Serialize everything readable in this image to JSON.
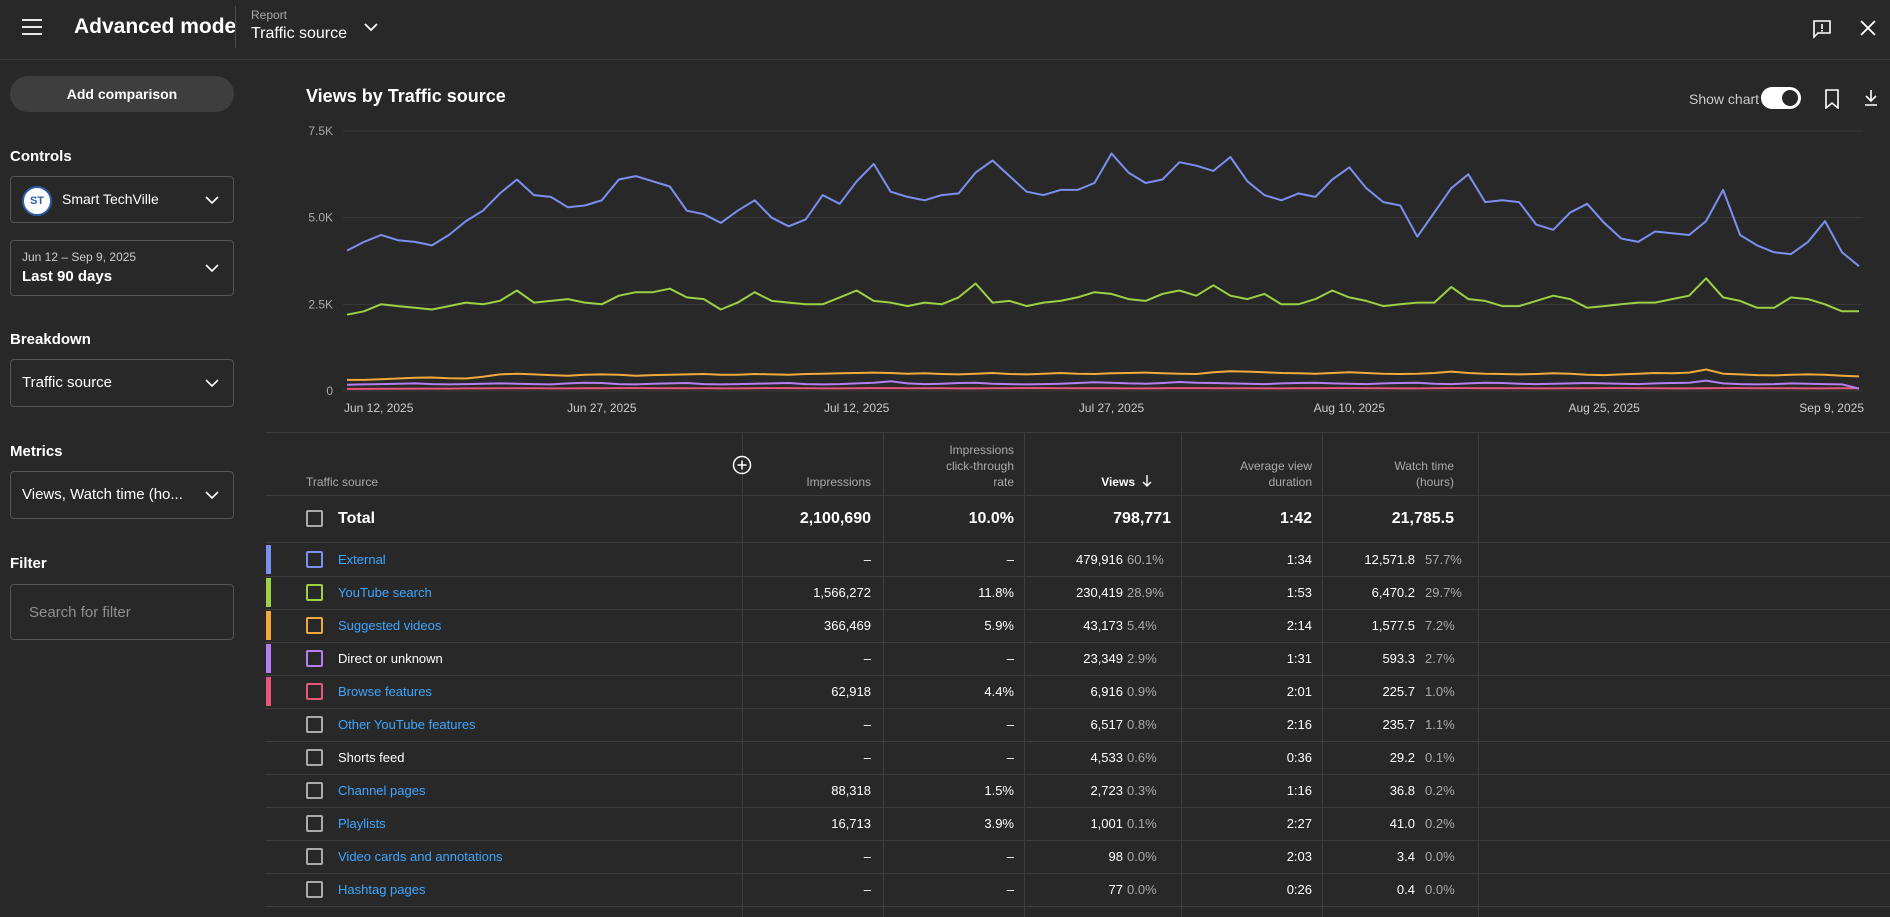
{
  "header": {
    "app_title": "Advanced mode",
    "report_caption": "Report",
    "report_name": "Traffic source"
  },
  "sidebar": {
    "add_comparison": "Add comparison",
    "controls_label": "Controls",
    "channel_name": "Smart TechVille",
    "channel_initials": "ST",
    "date_range": "Jun 12 – Sep 9, 2025",
    "date_preset": "Last 90 days",
    "breakdown_label": "Breakdown",
    "breakdown_value": "Traffic source",
    "metrics_label": "Metrics",
    "metrics_value": "Views, Watch time (ho...",
    "filter_label": "Filter",
    "filter_placeholder": "Search for filter"
  },
  "main": {
    "chart_title": "Views by Traffic source",
    "show_chart_label": "Show chart",
    "show_chart_on": true
  },
  "chart_data": {
    "type": "line",
    "title": "Views by Traffic source",
    "y_ticks": [
      "7.5K",
      "5.0K",
      "2.5K",
      "0"
    ],
    "ylim": [
      0,
      7500
    ],
    "x_ticks": [
      {
        "label": "Jun 12, 2025",
        "i": 0
      },
      {
        "label": "Jun 27, 2025",
        "i": 15
      },
      {
        "label": "Jul 12, 2025",
        "i": 30
      },
      {
        "label": "Jul 27, 2025",
        "i": 45
      },
      {
        "label": "Aug 10, 2025",
        "i": 59
      },
      {
        "label": "Aug 25, 2025",
        "i": 74
      },
      {
        "label": "Sep 9, 2025",
        "i": 89
      }
    ],
    "grid": true,
    "series": [
      {
        "name": "External",
        "color": "#7b8ff0",
        "values": [
          4050,
          4300,
          4500,
          4350,
          4300,
          4200,
          4500,
          4900,
          5200,
          5700,
          6100,
          5650,
          5600,
          5300,
          5350,
          5500,
          6100,
          6200,
          6050,
          5900,
          5200,
          5100,
          4850,
          5200,
          5500,
          5000,
          4750,
          4950,
          5650,
          5400,
          6050,
          6550,
          5750,
          5600,
          5500,
          5650,
          5700,
          6300,
          6650,
          6200,
          5750,
          5650,
          5800,
          5800,
          6000,
          6850,
          6300,
          6000,
          6100,
          6600,
          6500,
          6350,
          6750,
          6050,
          5650,
          5500,
          5700,
          5600,
          6100,
          6450,
          5850,
          5450,
          5350,
          4450,
          5150,
          5850,
          6250,
          5450,
          5500,
          5450,
          4800,
          4650,
          5150,
          5400,
          4850,
          4400,
          4300,
          4600,
          4550,
          4500,
          4900,
          5800,
          4500,
          4200,
          4000,
          3950,
          4300,
          4900,
          4000,
          3600
        ]
      },
      {
        "name": "YouTube search",
        "color": "#9ed043",
        "values": [
          2200,
          2300,
          2500,
          2450,
          2400,
          2350,
          2450,
          2550,
          2500,
          2600,
          2900,
          2550,
          2600,
          2650,
          2550,
          2500,
          2750,
          2850,
          2850,
          2950,
          2700,
          2650,
          2350,
          2550,
          2850,
          2600,
          2550,
          2500,
          2500,
          2700,
          2900,
          2600,
          2550,
          2450,
          2550,
          2500,
          2700,
          3100,
          2550,
          2600,
          2450,
          2550,
          2600,
          2700,
          2850,
          2800,
          2650,
          2600,
          2800,
          2900,
          2750,
          3050,
          2750,
          2650,
          2800,
          2500,
          2500,
          2650,
          2900,
          2700,
          2600,
          2450,
          2500,
          2550,
          2550,
          3000,
          2650,
          2600,
          2450,
          2450,
          2600,
          2750,
          2650,
          2400,
          2450,
          2500,
          2550,
          2550,
          2650,
          2750,
          3250,
          2700,
          2600,
          2400,
          2400,
          2700,
          2650,
          2500,
          2300,
          2300
        ]
      },
      {
        "name": "Suggested videos",
        "color": "#f2a93b",
        "values": [
          320,
          320,
          340,
          360,
          380,
          390,
          370,
          360,
          410,
          480,
          500,
          480,
          460,
          440,
          470,
          480,
          470,
          440,
          460,
          470,
          480,
          490,
          470,
          470,
          490,
          480,
          470,
          490,
          500,
          510,
          520,
          530,
          520,
          500,
          510,
          490,
          480,
          500,
          520,
          490,
          480,
          500,
          520,
          500,
          490,
          510,
          520,
          530,
          510,
          500,
          490,
          540,
          570,
          560,
          540,
          520,
          510,
          500,
          520,
          540,
          520,
          500,
          490,
          500,
          520,
          560,
          520,
          500,
          490,
          480,
          490,
          510,
          500,
          470,
          460,
          480,
          500,
          520,
          510,
          530,
          620,
          500,
          480,
          460,
          450,
          470,
          480,
          470,
          440,
          420
        ]
      },
      {
        "name": "Direct or unknown",
        "color": "#b67ef2",
        "values": [
          180,
          190,
          200,
          210,
          220,
          200,
          190,
          200,
          210,
          220,
          210,
          200,
          190,
          220,
          240,
          230,
          200,
          190,
          210,
          220,
          230,
          200,
          190,
          200,
          210,
          220,
          230,
          200,
          190,
          200,
          220,
          240,
          280,
          220,
          200,
          210,
          230,
          240,
          210,
          200,
          190,
          200,
          210,
          230,
          250,
          240,
          220,
          210,
          230,
          260,
          240,
          230,
          220,
          210,
          200,
          220,
          230,
          240,
          220,
          210,
          200,
          220,
          230,
          240,
          210,
          200,
          220,
          240,
          230,
          210,
          200,
          210,
          220,
          230,
          220,
          210,
          200,
          220,
          230,
          240,
          300,
          220,
          200,
          190,
          200,
          220,
          210,
          200,
          190,
          70
        ]
      },
      {
        "name": "Browse features",
        "color": "#e8567a",
        "values": [
          60,
          60,
          65,
          65,
          70,
          70,
          70,
          75,
          75,
          80,
          80,
          80,
          75,
          75,
          80,
          80,
          85,
          85,
          80,
          80,
          80,
          80,
          75,
          75,
          80,
          85,
          85,
          80,
          75,
          75,
          80,
          85,
          85,
          80,
          80,
          80,
          75,
          75,
          80,
          80,
          85,
          85,
          80,
          80,
          80,
          80,
          75,
          75,
          80,
          85,
          85,
          80,
          80,
          80,
          75,
          75,
          80,
          80,
          85,
          85,
          80,
          80,
          75,
          75,
          80,
          85,
          85,
          80,
          80,
          80,
          75,
          75,
          80,
          80,
          85,
          85,
          80,
          80,
          75,
          75,
          80,
          85,
          85,
          80,
          80,
          80,
          75,
          75,
          80,
          80
        ]
      }
    ]
  },
  "table": {
    "headers": {
      "source": "Traffic source",
      "impressions": "Impressions",
      "ctr_line1": "Impressions",
      "ctr_line2": "click-through",
      "ctr_line3": "rate",
      "views": "Views",
      "avd_line1": "Average view",
      "avd_line2": "duration",
      "wt_line1": "Watch time",
      "wt_line2": "(hours)"
    },
    "total": {
      "label": "Total",
      "impressions": "2,100,690",
      "ctr": "10.0%",
      "views": "798,771",
      "avd": "1:42",
      "watch_time": "21,785.5"
    },
    "rows": [
      {
        "name": "External",
        "link": true,
        "color": "#7b8ff0",
        "impressions": "–",
        "ctr": "–",
        "views": "479,916",
        "views_pct": "60.1%",
        "avd": "1:34",
        "watch_time": "12,571.8",
        "wt_pct": "57.7%"
      },
      {
        "name": "YouTube search",
        "link": true,
        "color": "#9ed043",
        "impressions": "1,566,272",
        "ctr": "11.8%",
        "views": "230,419",
        "views_pct": "28.9%",
        "avd": "1:53",
        "watch_time": "6,470.2",
        "wt_pct": "29.7%"
      },
      {
        "name": "Suggested videos",
        "link": true,
        "color": "#f2a93b",
        "impressions": "366,469",
        "ctr": "5.9%",
        "views": "43,173",
        "views_pct": "5.4%",
        "avd": "2:14",
        "watch_time": "1,577.5",
        "wt_pct": "7.2%"
      },
      {
        "name": "Direct or unknown",
        "link": false,
        "color": "#b67ef2",
        "impressions": "–",
        "ctr": "–",
        "views": "23,349",
        "views_pct": "2.9%",
        "avd": "1:31",
        "watch_time": "593.3",
        "wt_pct": "2.7%"
      },
      {
        "name": "Browse features",
        "link": true,
        "color": "#e8567a",
        "impressions": "62,918",
        "ctr": "4.4%",
        "views": "6,916",
        "views_pct": "0.9%",
        "avd": "2:01",
        "watch_time": "225.7",
        "wt_pct": "1.0%"
      },
      {
        "name": "Other YouTube features",
        "link": true,
        "color": "",
        "impressions": "–",
        "ctr": "–",
        "views": "6,517",
        "views_pct": "0.8%",
        "avd": "2:16",
        "watch_time": "235.7",
        "wt_pct": "1.1%"
      },
      {
        "name": "Shorts feed",
        "link": false,
        "color": "",
        "impressions": "–",
        "ctr": "–",
        "views": "4,533",
        "views_pct": "0.6%",
        "avd": "0:36",
        "watch_time": "29.2",
        "wt_pct": "0.1%"
      },
      {
        "name": "Channel pages",
        "link": true,
        "color": "",
        "impressions": "88,318",
        "ctr": "1.5%",
        "views": "2,723",
        "views_pct": "0.3%",
        "avd": "1:16",
        "watch_time": "36.8",
        "wt_pct": "0.2%"
      },
      {
        "name": "Playlists",
        "link": true,
        "color": "",
        "impressions": "16,713",
        "ctr": "3.9%",
        "views": "1,001",
        "views_pct": "0.1%",
        "avd": "2:27",
        "watch_time": "41.0",
        "wt_pct": "0.2%"
      },
      {
        "name": "Video cards and annotations",
        "link": true,
        "color": "",
        "impressions": "–",
        "ctr": "–",
        "views": "98",
        "views_pct": "0.0%",
        "avd": "2:03",
        "watch_time": "3.4",
        "wt_pct": "0.0%"
      },
      {
        "name": "Hashtag pages",
        "link": true,
        "color": "",
        "impressions": "–",
        "ctr": "–",
        "views": "77",
        "views_pct": "0.0%",
        "avd": "0:26",
        "watch_time": "0.4",
        "wt_pct": "0.0%"
      }
    ]
  }
}
